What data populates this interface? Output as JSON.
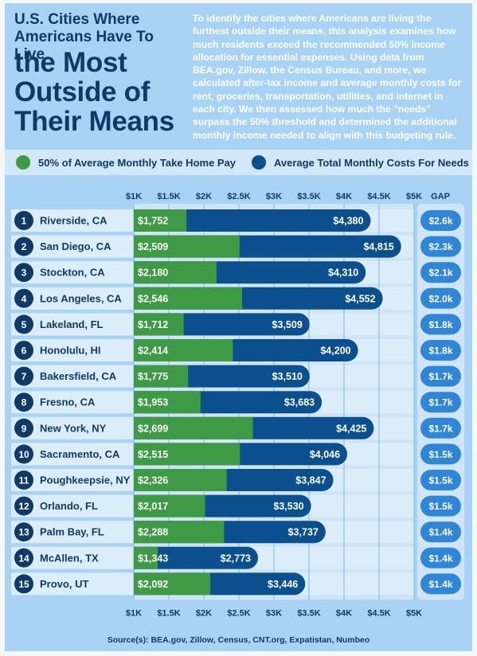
{
  "header": {
    "title_small": "U.S. Cities Where Americans Have To Live",
    "title_big": "the Most Outside of Their Means",
    "intro": "To identify the cities where Americans are living the furthest outside their means, this analysis examines how much residents exceed the recommended 50% income allocation for essential expenses. Using data from BEA.gov, Zillow, the Census Bureau, and more, we calculated after-tax income and average monthly costs for rent, groceries, transportation, utilities, and internet in each city. We then assessed how much the \"needs\" surpass the 50% threshold and determined the additional monthly income needed to align with this budgeting rule."
  },
  "legend": {
    "green_label": "50% of Average Monthly Take Home Pay",
    "blue_label": "Average Total Monthly Costs For Needs"
  },
  "colors": {
    "green": "#3f9a45",
    "blue": "#0b4f8f",
    "navy": "#0f3a66",
    "gap_pill": "#2f86d6",
    "row_bg": "#d2e7f8"
  },
  "gap_header": "GAP",
  "source": "Source(s): BEA.gov, Zillow, Census, CNT.org, Expatistan, Numbeo",
  "chart_data": {
    "type": "bar",
    "orientation": "horizontal",
    "stacked": false,
    "xlim": [
      1000,
      5000
    ],
    "x_ticks": [
      1000,
      1500,
      2000,
      2500,
      3000,
      3500,
      4000,
      4500,
      5000
    ],
    "x_tick_labels": [
      "$1K",
      "$1.5K",
      "$2K",
      "$2.5K",
      "$3K",
      "$3.5K",
      "$4K",
      "$4.5K",
      "$5K"
    ],
    "grid": true,
    "legend_position": "top",
    "ranks": [
      "1",
      "2",
      "3",
      "4",
      "5",
      "6",
      "7",
      "8",
      "9",
      "10",
      "11",
      "12",
      "13",
      "14",
      "15"
    ],
    "categories": [
      "Riverside, CA",
      "San Diego, CA",
      "Stockton, CA",
      "Los Angeles, CA",
      "Lakeland, FL",
      "Honolulu, HI",
      "Bakersfield, CA",
      "Fresno, CA",
      "New York, NY",
      "Sacramento, CA",
      "Poughkeepsie, NY",
      "Orlando, FL",
      "Palm Bay, FL",
      "McAllen, TX",
      "Provo, UT"
    ],
    "series": [
      {
        "name": "50% of Average Monthly Take Home Pay",
        "values": [
          1752,
          2509,
          2180,
          2546,
          1712,
          2414,
          1775,
          1953,
          2699,
          2515,
          2326,
          2017,
          2288,
          1343,
          2092
        ],
        "labels": [
          "$1,752",
          "$2,509",
          "$2,180",
          "$2,546",
          "$1,712",
          "$2,414",
          "$1,775",
          "$1,953",
          "$2,699",
          "$2,515",
          "$2,326",
          "$2,017",
          "$2,288",
          "$1,343",
          "$2,092"
        ]
      },
      {
        "name": "Average Total Monthly Costs For Needs",
        "values": [
          4380,
          4815,
          4310,
          4552,
          3509,
          4200,
          3510,
          3683,
          4425,
          4046,
          3847,
          3530,
          3737,
          2773,
          3446
        ],
        "labels": [
          "$4,380",
          "$4,815",
          "$4,310",
          "$4,552",
          "$3,509",
          "$4,200",
          "$3,510",
          "$3,683",
          "$4,425",
          "$4,046",
          "$3,847",
          "$3,530",
          "$3,737",
          "$2,773",
          "$3,446"
        ]
      }
    ],
    "gap_labels": [
      "$2.6k",
      "$2.3k",
      "$2.1k",
      "$2.0k",
      "$1.8k",
      "$1.8k",
      "$1.7k",
      "$1.7k",
      "$1.7k",
      "$1.5k",
      "$1.5k",
      "$1.5k",
      "$1.4k",
      "$1.4k",
      "$1.4k"
    ]
  }
}
